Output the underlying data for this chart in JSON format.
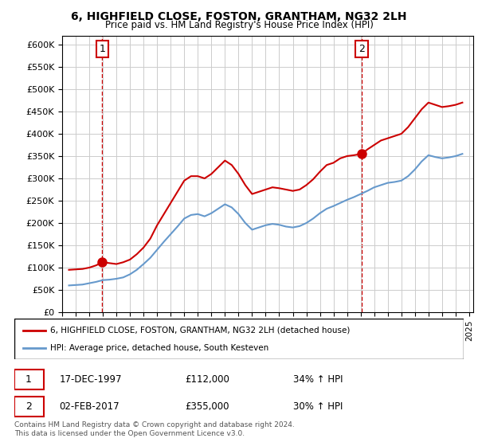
{
  "title": "6, HIGHFIELD CLOSE, FOSTON, GRANTHAM, NG32 2LH",
  "subtitle": "Price paid vs. HM Land Registry's House Price Index (HPI)",
  "legend_line1": "6, HIGHFIELD CLOSE, FOSTON, GRANTHAM, NG32 2LH (detached house)",
  "legend_line2": "HPI: Average price, detached house, South Kesteven",
  "footnote": "Contains HM Land Registry data © Crown copyright and database right 2024.\nThis data is licensed under the Open Government Licence v3.0.",
  "transaction1_label": "1",
  "transaction1_date": "17-DEC-1997",
  "transaction1_price": "£112,000",
  "transaction1_hpi": "34% ↑ HPI",
  "transaction2_label": "2",
  "transaction2_date": "02-FEB-2017",
  "transaction2_price": "£355,000",
  "transaction2_hpi": "30% ↑ HPI",
  "ylim": [
    0,
    620000
  ],
  "yticks": [
    0,
    50000,
    100000,
    150000,
    200000,
    250000,
    300000,
    350000,
    400000,
    450000,
    500000,
    550000,
    600000
  ],
  "red_color": "#cc0000",
  "blue_color": "#6699cc",
  "marker_color": "#cc0000",
  "vline_color": "#cc0000",
  "background_color": "#ffffff",
  "grid_color": "#cccccc",
  "transaction1_x": 1997.96,
  "transaction1_y": 112000,
  "transaction2_x": 2017.09,
  "transaction2_y": 355000,
  "red_series_x": [
    1995.5,
    1996.0,
    1996.5,
    1997.0,
    1997.5,
    1997.96,
    1998.5,
    1999.0,
    1999.5,
    2000.0,
    2000.5,
    2001.0,
    2001.5,
    2002.0,
    2002.5,
    2003.0,
    2003.5,
    2004.0,
    2004.5,
    2005.0,
    2005.5,
    2006.0,
    2006.5,
    2007.0,
    2007.5,
    2008.0,
    2008.5,
    2009.0,
    2009.5,
    2010.0,
    2010.5,
    2011.0,
    2011.5,
    2012.0,
    2012.5,
    2013.0,
    2013.5,
    2014.0,
    2014.5,
    2015.0,
    2015.5,
    2016.0,
    2016.5,
    2017.09,
    2017.5,
    2018.0,
    2018.5,
    2019.0,
    2019.5,
    2020.0,
    2020.5,
    2021.0,
    2021.5,
    2022.0,
    2022.5,
    2023.0,
    2023.5,
    2024.0,
    2024.5
  ],
  "red_series_y": [
    95000,
    96000,
    97000,
    100000,
    105000,
    112000,
    110000,
    108000,
    112000,
    118000,
    130000,
    145000,
    165000,
    195000,
    220000,
    245000,
    270000,
    295000,
    305000,
    305000,
    300000,
    310000,
    325000,
    340000,
    330000,
    310000,
    285000,
    265000,
    270000,
    275000,
    280000,
    278000,
    275000,
    272000,
    275000,
    285000,
    298000,
    315000,
    330000,
    335000,
    345000,
    350000,
    352000,
    355000,
    365000,
    375000,
    385000,
    390000,
    395000,
    400000,
    415000,
    435000,
    455000,
    470000,
    465000,
    460000,
    462000,
    465000,
    470000
  ],
  "blue_series_x": [
    1995.5,
    1996.0,
    1996.5,
    1997.0,
    1997.5,
    1998.0,
    1998.5,
    1999.0,
    1999.5,
    2000.0,
    2000.5,
    2001.0,
    2001.5,
    2002.0,
    2002.5,
    2003.0,
    2003.5,
    2004.0,
    2004.5,
    2005.0,
    2005.5,
    2006.0,
    2006.5,
    2007.0,
    2007.5,
    2008.0,
    2008.5,
    2009.0,
    2009.5,
    2010.0,
    2010.5,
    2011.0,
    2011.5,
    2012.0,
    2012.5,
    2013.0,
    2013.5,
    2014.0,
    2014.5,
    2015.0,
    2015.5,
    2016.0,
    2016.5,
    2017.0,
    2017.5,
    2018.0,
    2018.5,
    2019.0,
    2019.5,
    2020.0,
    2020.5,
    2021.0,
    2021.5,
    2022.0,
    2022.5,
    2023.0,
    2023.5,
    2024.0,
    2024.5
  ],
  "blue_series_y": [
    60000,
    61000,
    62000,
    65000,
    68000,
    72000,
    73000,
    75000,
    78000,
    85000,
    95000,
    108000,
    122000,
    140000,
    158000,
    175000,
    192000,
    210000,
    218000,
    220000,
    215000,
    222000,
    232000,
    242000,
    235000,
    220000,
    200000,
    185000,
    190000,
    195000,
    198000,
    196000,
    192000,
    190000,
    193000,
    200000,
    210000,
    222000,
    232000,
    238000,
    245000,
    252000,
    258000,
    265000,
    272000,
    280000,
    285000,
    290000,
    292000,
    295000,
    305000,
    320000,
    338000,
    352000,
    348000,
    345000,
    347000,
    350000,
    355000
  ],
  "xlim_left": 1995.0,
  "xlim_right": 2025.3,
  "xticks": [
    1995,
    1996,
    1997,
    1998,
    1999,
    2000,
    2001,
    2002,
    2003,
    2004,
    2005,
    2006,
    2007,
    2008,
    2009,
    2010,
    2011,
    2012,
    2013,
    2014,
    2015,
    2016,
    2017,
    2018,
    2019,
    2020,
    2021,
    2022,
    2023,
    2024,
    2025
  ]
}
